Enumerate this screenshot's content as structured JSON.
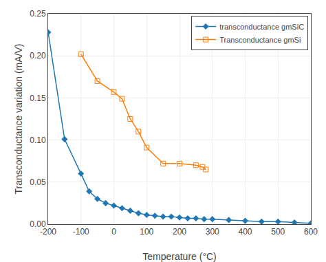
{
  "chart_data": {
    "type": "line",
    "x_label": "Temperature (°C)",
    "y_label": "Transconductance variation (mA/V)",
    "series": [
      {
        "name": "transconductance gmSiC",
        "marker": "diamond",
        "x": [
          -200,
          -150,
          -100,
          -75,
          -50,
          -25,
          0,
          25,
          50,
          75,
          100,
          125,
          150,
          175,
          200,
          225,
          250,
          275,
          300,
          350,
          400,
          450,
          500,
          550,
          600
        ],
        "values": [
          0.228,
          0.101,
          0.06,
          0.039,
          0.03,
          0.025,
          0.022,
          0.019,
          0.016,
          0.013,
          0.011,
          0.01,
          0.009,
          0.009,
          0.008,
          0.007,
          0.007,
          0.006,
          0.006,
          0.005,
          0.004,
          0.003,
          0.003,
          0.002,
          0.001
        ]
      },
      {
        "name": "Transconductance gmSi",
        "marker": "square-open",
        "x": [
          -100,
          -50,
          0,
          25,
          50,
          75,
          100,
          150,
          200,
          250,
          270,
          280
        ],
        "values": [
          0.202,
          0.17,
          0.157,
          0.149,
          0.125,
          0.11,
          0.091,
          0.072,
          0.072,
          0.07,
          0.068,
          0.065
        ]
      }
    ],
    "xlim": [
      -200,
      600
    ],
    "ylim": [
      0,
      0.25
    ],
    "xticks": [
      -200,
      -100,
      0,
      100,
      200,
      300,
      400,
      500,
      600
    ],
    "yticks": [
      {
        "value": 0,
        "label": "0.00"
      },
      0.05,
      {
        "value": 0.1,
        "label": "0.10"
      },
      0.15,
      {
        "value": 0.2,
        "label": "0.20"
      },
      0.25
    ],
    "grid": true,
    "legend": "upper right"
  }
}
